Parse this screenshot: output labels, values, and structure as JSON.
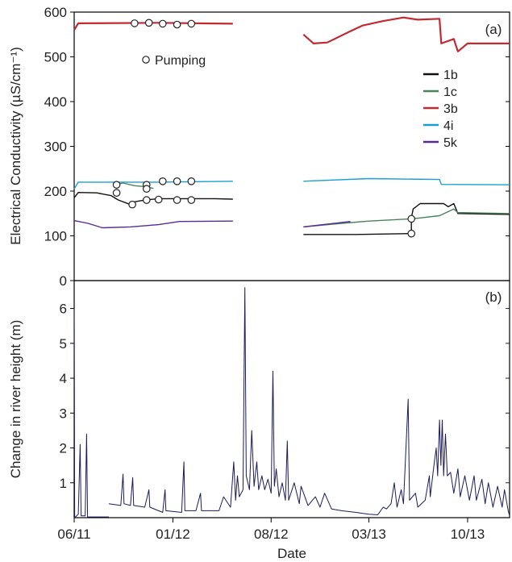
{
  "chart_data": [
    {
      "panel_label": "(a)",
      "type": "line",
      "ylabel": "Electrical Conductivity (µS/cm⁻¹)",
      "ylim": [
        0,
        600
      ],
      "yticks": [
        "0",
        "100",
        "200",
        "300",
        "400",
        "500",
        "600"
      ],
      "xlim": [
        "2011-06-01",
        "2013-12-31"
      ],
      "grid": false,
      "legend_position": "right-middle",
      "marker_legend": "Pumping",
      "series": [
        {
          "name": "1b",
          "color": "#111111",
          "segments": [
            [
              [
                "2011-06-01",
                185
              ],
              [
                "2011-06-10",
                197
              ],
              [
                "2011-07-20",
                196
              ],
              [
                "2011-08-20",
                190
              ],
              [
                "2011-09-05",
                180
              ],
              [
                "2011-10-01",
                170
              ],
              [
                "2011-10-10",
                176
              ],
              [
                "2011-11-01",
                180
              ],
              [
                "2011-12-01",
                183
              ],
              [
                "2012-01-15",
                183
              ],
              [
                "2012-04-01",
                183
              ],
              [
                "2012-05-10",
                182
              ]
            ],
            [
              [
                "2012-10-10",
                103
              ],
              [
                "2013-02-01",
                103
              ],
              [
                "2013-06-01",
                105
              ],
              [
                "2013-06-01",
                140
              ],
              [
                "2013-06-05",
                160
              ],
              [
                "2013-06-20",
                172
              ],
              [
                "2013-08-10",
                172
              ],
              [
                "2013-08-20",
                165
              ],
              [
                "2013-09-01",
                172
              ],
              [
                "2013-09-10",
                150
              ],
              [
                "2013-12-31",
                148
              ]
            ]
          ]
        },
        {
          "name": "1c",
          "color": "#4c8259",
          "segments": [
            [
              [
                "2011-09-01",
                215
              ],
              [
                "2011-09-15",
                218
              ],
              [
                "2011-10-10",
                212
              ],
              [
                "2011-11-01",
                210
              ],
              [
                "2011-11-20",
                206
              ]
            ],
            [
              [
                "2012-10-10",
                120
              ],
              [
                "2013-01-01",
                128
              ],
              [
                "2013-03-01",
                133
              ],
              [
                "2013-06-01",
                138
              ],
              [
                "2013-06-20",
                140
              ],
              [
                "2013-08-01",
                145
              ],
              [
                "2013-09-01",
                160
              ],
              [
                "2013-09-10",
                152
              ],
              [
                "2013-12-31",
                150
              ]
            ]
          ]
        },
        {
          "name": "3b",
          "color": "#c22a32",
          "segments": [
            [
              [
                "2011-06-01",
                560
              ],
              [
                "2011-06-10",
                575
              ],
              [
                "2011-12-01",
                576
              ],
              [
                "2012-05-10",
                574
              ]
            ],
            [
              [
                "2012-10-10",
                550
              ],
              [
                "2012-11-01",
                530
              ],
              [
                "2012-12-01",
                532
              ],
              [
                "2013-01-15",
                555
              ],
              [
                "2013-02-15",
                570
              ],
              [
                "2013-04-01",
                580
              ],
              [
                "2013-05-15",
                588
              ],
              [
                "2013-06-15",
                583
              ],
              [
                "2013-08-01",
                585
              ],
              [
                "2013-08-05",
                530
              ],
              [
                "2013-09-01",
                540
              ],
              [
                "2013-09-10",
                512
              ],
              [
                "2013-10-01",
                530
              ],
              [
                "2013-12-31",
                530
              ]
            ]
          ]
        },
        {
          "name": "4i",
          "color": "#1aa0d0",
          "segments": [
            [
              [
                "2011-06-01",
                205
              ],
              [
                "2011-06-10",
                220
              ],
              [
                "2011-08-01",
                220
              ],
              [
                "2011-12-01",
                220
              ],
              [
                "2012-05-10",
                222
              ]
            ],
            [
              [
                "2012-10-10",
                222
              ],
              [
                "2013-03-01",
                228
              ],
              [
                "2013-08-01",
                226
              ],
              [
                "2013-08-05",
                215
              ],
              [
                "2013-12-31",
                214
              ]
            ]
          ]
        },
        {
          "name": "5k",
          "color": "#5b2a90",
          "segments": [
            [
              [
                "2011-06-01",
                134
              ],
              [
                "2011-07-01",
                128
              ],
              [
                "2011-08-01",
                118
              ],
              [
                "2011-10-01",
                120
              ],
              [
                "2011-12-01",
                125
              ],
              [
                "2012-01-15",
                132
              ],
              [
                "2012-05-10",
                133
              ]
            ],
            [
              [
                "2012-10-10",
                120
              ],
              [
                "2013-01-20",
                132
              ]
            ]
          ]
        }
      ],
      "pumping_events": [
        [
          "2011-10-10",
          575
        ],
        [
          "2011-11-10",
          576
        ],
        [
          "2011-12-10",
          574
        ],
        [
          "2012-01-10",
          572
        ],
        [
          "2012-02-10",
          574
        ],
        [
          "2011-09-01",
          196
        ],
        [
          "2011-10-05",
          170
        ],
        [
          "2011-11-05",
          180
        ],
        [
          "2011-12-01",
          181
        ],
        [
          "2012-01-10",
          180
        ],
        [
          "2012-02-10",
          180
        ],
        [
          "2011-09-01",
          214
        ],
        [
          "2011-11-05",
          214
        ],
        [
          "2011-11-05",
          205
        ],
        [
          "2011-12-10",
          222
        ],
        [
          "2012-01-10",
          222
        ],
        [
          "2012-02-10",
          222
        ],
        [
          "2013-06-01",
          105
        ],
        [
          "2013-06-01",
          138
        ]
      ]
    },
    {
      "panel_label": "(b)",
      "type": "line",
      "xlabel": "Date",
      "ylabel": "Change in river height (m)",
      "ylim": [
        0,
        6.8
      ],
      "yticks": [
        "1",
        "2",
        "3",
        "4",
        "5",
        "6"
      ],
      "xlim": [
        "2011-06-01",
        "2013-12-31"
      ],
      "xticks": [
        "06/11",
        "01/12",
        "08/12",
        "03/13",
        "10/13"
      ],
      "xtick_dates": [
        "2011-06-01",
        "2012-01-01",
        "2012-08-01",
        "2013-03-01",
        "2013-10-01"
      ],
      "grid": false,
      "series": [
        {
          "name": "",
          "color": "#1b1b5e",
          "segments": [
            [
              [
                "2011-06-01",
                6.0
              ],
              [
                "2011-06-02",
                0.0
              ],
              [
                "2011-06-10",
                0.1
              ],
              [
                "2011-06-14",
                2.1
              ],
              [
                "2011-06-16",
                0.05
              ],
              [
                "2011-06-25",
                0.05
              ],
              [
                "2011-06-28",
                2.4
              ],
              [
                "2011-06-30",
                0.02
              ],
              [
                "2011-08-15",
                0.02
              ]
            ],
            [
              [
                "2011-08-15",
                0.4
              ],
              [
                "2011-09-10",
                0.35
              ],
              [
                "2011-09-15",
                1.25
              ],
              [
                "2011-09-17",
                0.4
              ],
              [
                "2011-10-01",
                0.35
              ],
              [
                "2011-10-06",
                1.15
              ],
              [
                "2011-10-08",
                0.35
              ],
              [
                "2011-11-01",
                0.3
              ],
              [
                "2011-11-10",
                0.8
              ],
              [
                "2011-11-12",
                0.3
              ],
              [
                "2011-12-10",
                0.15
              ],
              [
                "2011-12-15",
                0.8
              ],
              [
                "2011-12-17",
                0.2
              ],
              [
                "2012-01-20",
                0.15
              ],
              [
                "2012-01-25",
                1.6
              ],
              [
                "2012-01-27",
                0.2
              ],
              [
                "2012-02-20",
                0.2
              ],
              [
                "2012-03-01",
                0.7
              ],
              [
                "2012-03-03",
                0.2
              ],
              [
                "2012-04-10",
                0.2
              ],
              [
                "2012-04-20",
                0.6
              ],
              [
                "2012-05-05",
                0.3
              ],
              [
                "2012-05-12",
                1.6
              ],
              [
                "2012-05-16",
                0.5
              ],
              [
                "2012-05-20",
                1.2
              ],
              [
                "2012-05-24",
                0.6
              ],
              [
                "2012-06-01",
                0.8
              ],
              [
                "2012-06-05",
                6.6
              ],
              [
                "2012-06-08",
                1.2
              ],
              [
                "2012-06-15",
                0.8
              ],
              [
                "2012-06-20",
                2.5
              ],
              [
                "2012-06-25",
                0.9
              ],
              [
                "2012-07-01",
                1.6
              ],
              [
                "2012-07-05",
                0.8
              ],
              [
                "2012-07-12",
                1.2
              ],
              [
                "2012-07-18",
                0.8
              ],
              [
                "2012-07-25",
                1.1
              ],
              [
                "2012-08-01",
                0.7
              ],
              [
                "2012-08-05",
                4.2
              ],
              [
                "2012-08-08",
                0.9
              ],
              [
                "2012-08-12",
                1.4
              ],
              [
                "2012-08-18",
                0.6
              ],
              [
                "2012-08-25",
                1.0
              ],
              [
                "2012-09-01",
                0.5
              ],
              [
                "2012-09-05",
                2.2
              ],
              [
                "2012-09-08",
                0.5
              ],
              [
                "2012-09-20",
                1.0
              ],
              [
                "2012-10-01",
                0.4
              ],
              [
                "2012-10-05",
                0.9
              ],
              [
                "2012-10-20",
                0.35
              ],
              [
                "2012-11-05",
                0.6
              ],
              [
                "2012-11-15",
                0.3
              ],
              [
                "2012-11-25",
                0.7
              ],
              [
                "2012-12-10",
                0.25
              ],
              [
                "2013-01-01",
                0.2
              ],
              [
                "2013-02-01",
                0.15
              ],
              [
                "2013-03-01",
                0.1
              ],
              [
                "2013-03-20",
                0.08
              ],
              [
                "2013-04-01",
                0.3
              ],
              [
                "2013-04-08",
                0.25
              ],
              [
                "2013-04-18",
                0.4
              ],
              [
                "2013-04-25",
                1.0
              ],
              [
                "2013-05-01",
                0.3
              ],
              [
                "2013-05-10",
                0.8
              ],
              [
                "2013-05-15",
                0.4
              ],
              [
                "2013-05-25",
                3.4
              ],
              [
                "2013-05-28",
                0.5
              ],
              [
                "2013-06-10",
                0.7
              ],
              [
                "2013-06-15",
                0.3
              ],
              [
                "2013-07-01",
                0.5
              ],
              [
                "2013-07-10",
                1.2
              ],
              [
                "2013-07-12",
                0.6
              ],
              [
                "2013-07-20",
                1.5
              ],
              [
                "2013-07-25",
                2.0
              ],
              [
                "2013-07-28",
                1.2
              ],
              [
                "2013-08-01",
                2.8
              ],
              [
                "2013-08-04",
                1.5
              ],
              [
                "2013-08-07",
                2.8
              ],
              [
                "2013-08-10",
                1.2
              ],
              [
                "2013-08-14",
                2.4
              ],
              [
                "2013-08-18",
                1.2
              ],
              [
                "2013-08-25",
                1.3
              ],
              [
                "2013-09-01",
                0.7
              ],
              [
                "2013-09-10",
                1.4
              ],
              [
                "2013-09-15",
                0.6
              ],
              [
                "2013-09-25",
                1.2
              ],
              [
                "2013-10-05",
                0.5
              ],
              [
                "2013-10-15",
                1.2
              ],
              [
                "2013-10-20",
                0.5
              ],
              [
                "2013-11-01",
                1.1
              ],
              [
                "2013-11-08",
                0.4
              ],
              [
                "2013-11-15",
                1.0
              ],
              [
                "2013-11-25",
                0.3
              ],
              [
                "2013-12-05",
                0.9
              ],
              [
                "2013-12-15",
                0.3
              ],
              [
                "2013-12-20",
                0.8
              ],
              [
                "2013-12-28",
                0.2
              ],
              [
                "2013-12-31",
                0.05
              ]
            ]
          ]
        }
      ]
    }
  ]
}
